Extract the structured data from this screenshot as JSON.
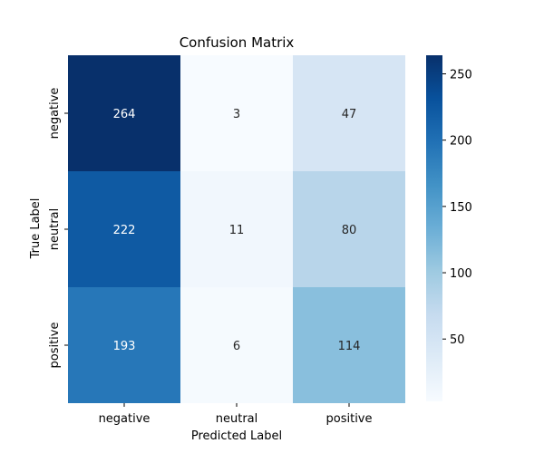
{
  "chart_data": {
    "type": "heatmap",
    "title": "Confusion Matrix",
    "xlabel": "Predicted Label",
    "ylabel": "True Label",
    "x_categories": [
      "negative",
      "neutral",
      "positive"
    ],
    "y_categories": [
      "negative",
      "neutral",
      "positive"
    ],
    "values": [
      [
        264,
        3,
        47
      ],
      [
        222,
        11,
        80
      ],
      [
        193,
        6,
        114
      ]
    ],
    "colorbar": {
      "colormap": "Blues",
      "range": [
        3,
        264
      ],
      "ticks": [
        50,
        100,
        150,
        200,
        250
      ],
      "low_color": "#f7fbff",
      "high_color": "#08306b"
    },
    "grid": false
  }
}
